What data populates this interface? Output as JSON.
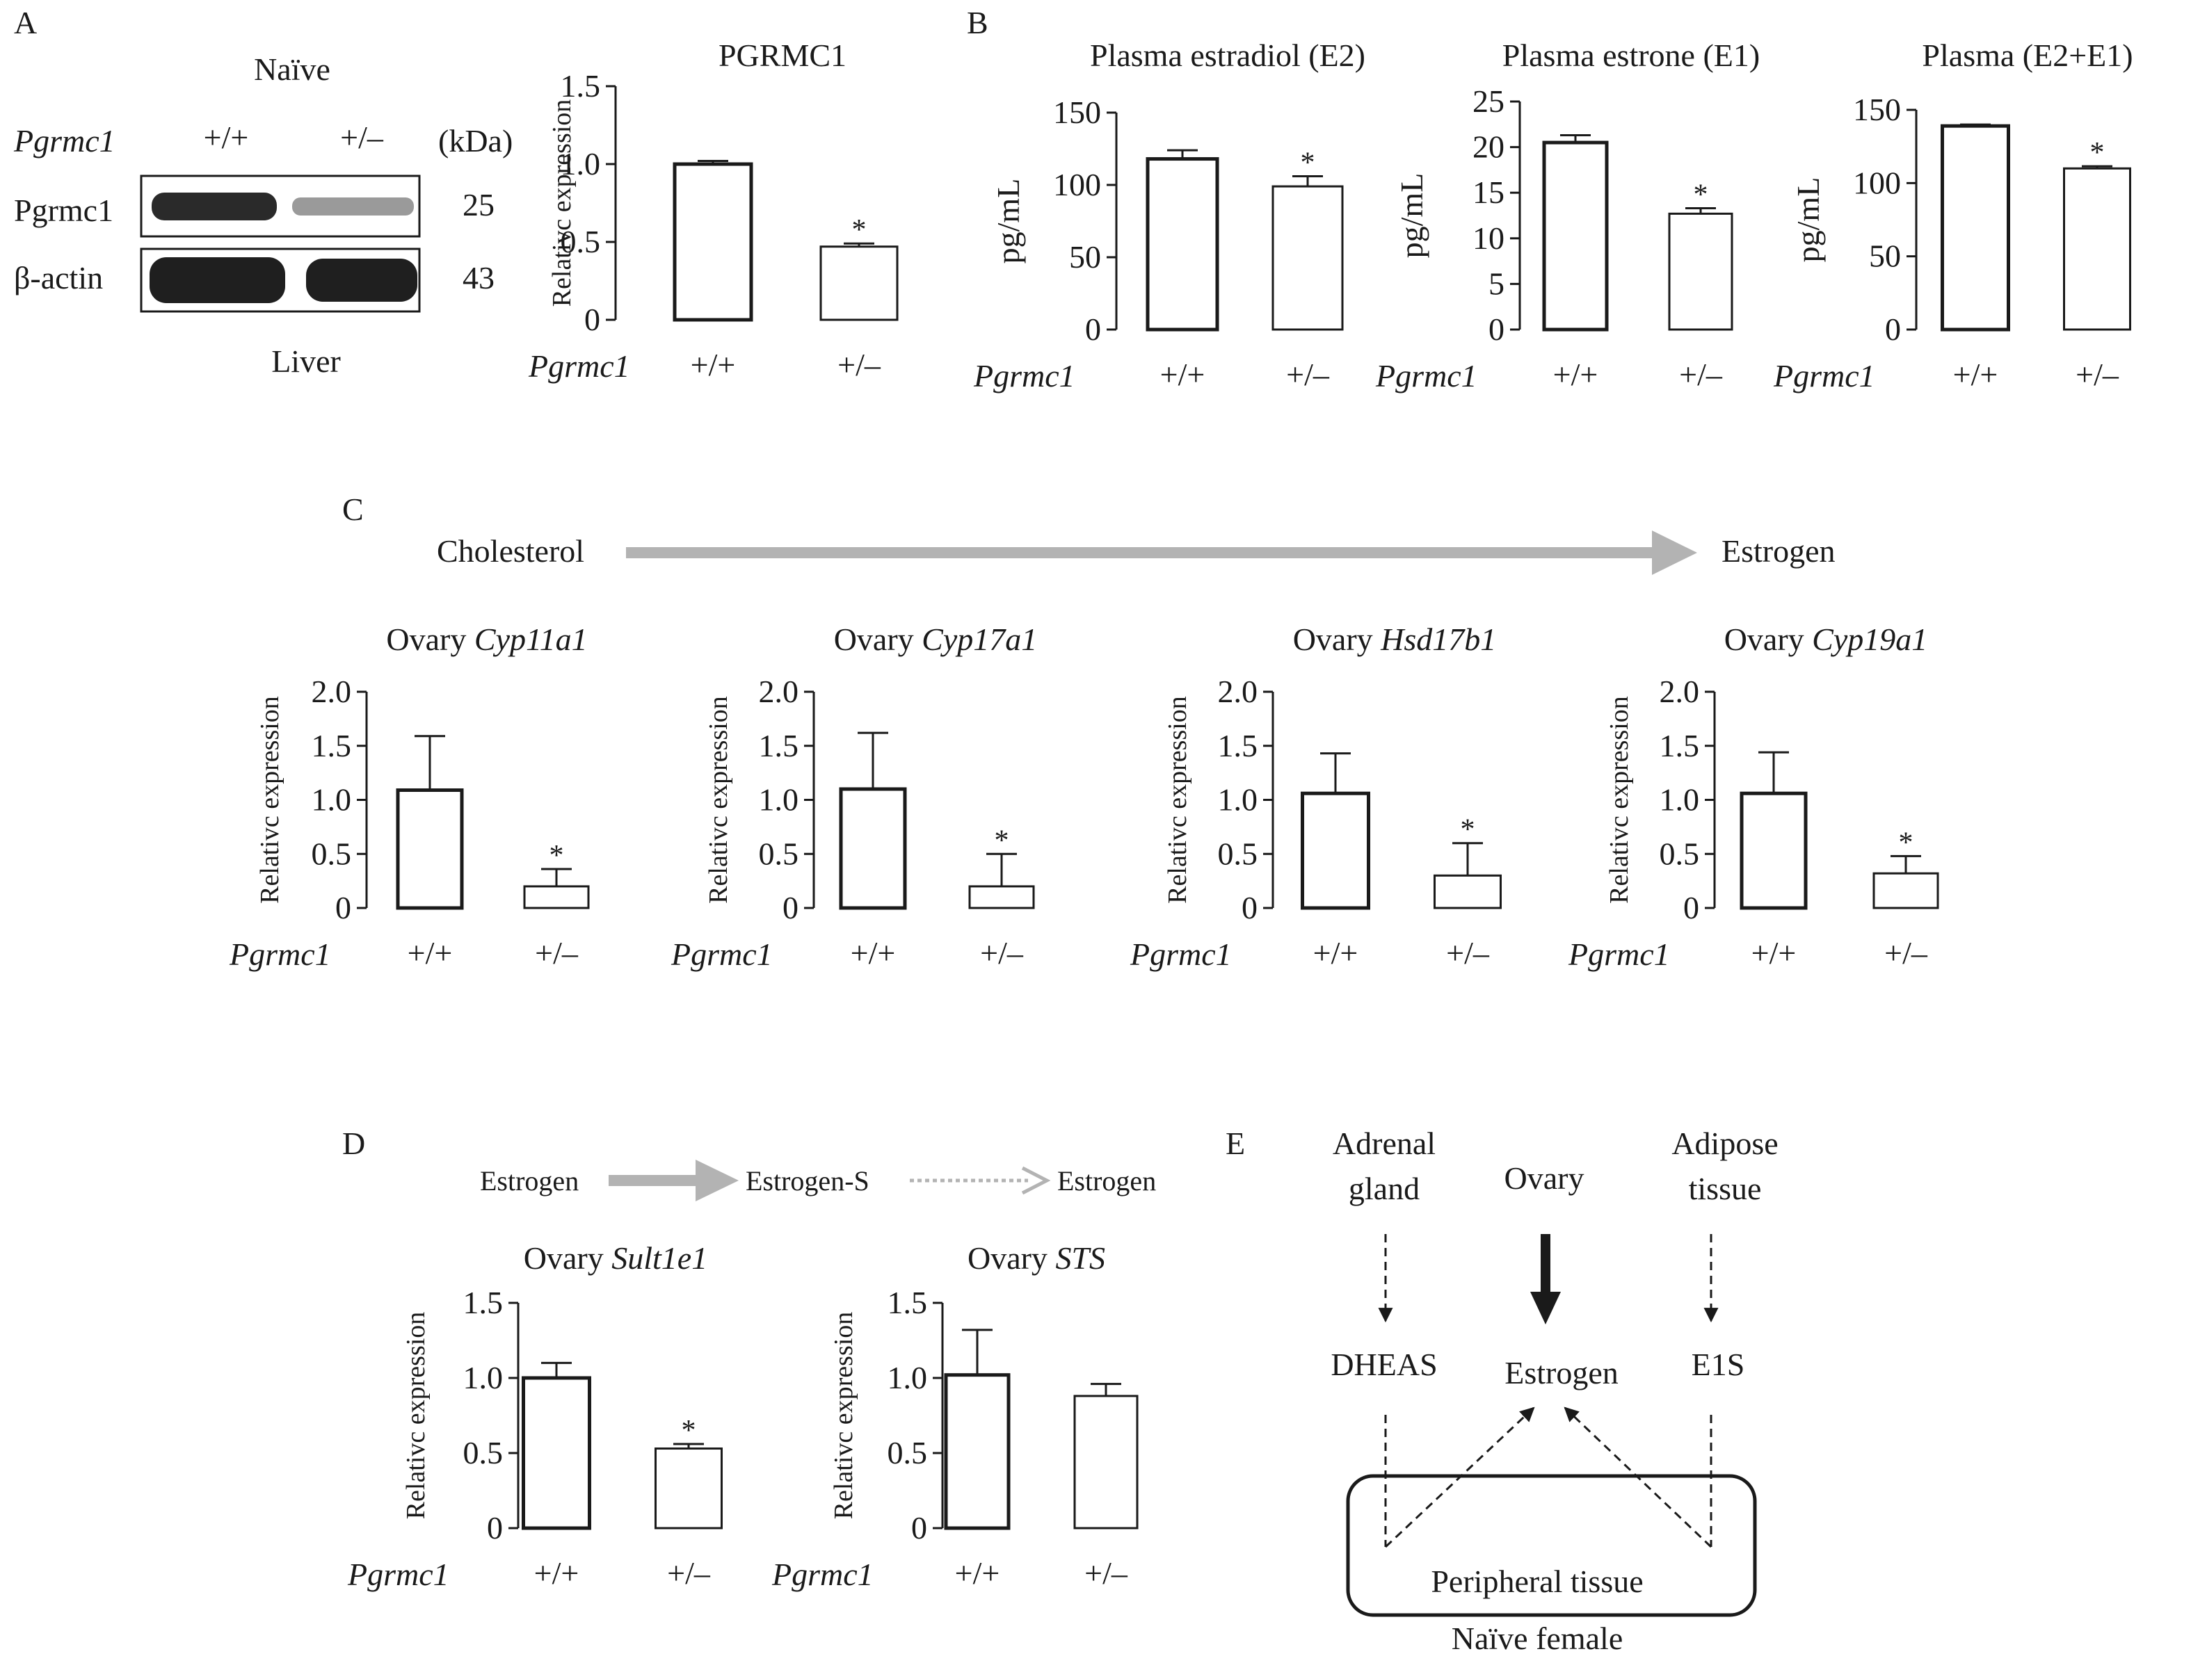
{
  "panels": {
    "A": {
      "letter": "A"
    },
    "B": {
      "letter": "B"
    },
    "C": {
      "letter": "C"
    },
    "D": {
      "letter": "D"
    },
    "E": {
      "letter": "E"
    }
  },
  "western_blot": {
    "title": "Naïve",
    "gene_label": "Pgrmc1",
    "genotypes": [
      "+/+",
      "+/–"
    ],
    "kda_label": "(kDa)",
    "rows": [
      {
        "label": "Pgrmc1",
        "kda": "25"
      },
      {
        "label": "β-actin",
        "kda": "43"
      }
    ],
    "tissue": "Liver"
  },
  "pathway_c": {
    "from": "Cholesterol",
    "to": "Estrogen"
  },
  "pathway_d": {
    "a": "Estrogen",
    "b": "Estrogen-S",
    "c": "Estrogen"
  },
  "diagram_e": {
    "adrenal": [
      "Adrenal",
      "gland"
    ],
    "ovary": "Ovary",
    "adipose": [
      "Adipose",
      "tissue"
    ],
    "dheas": "DHEAS",
    "estrogen": "Estrogen",
    "e1s": "E1S",
    "peripheral": "Peripheral tissue",
    "caption": "Naïve female"
  },
  "colors": {
    "ink": "#1a1a1a",
    "arrow_gray": "#b3b3b3",
    "bar_fill": "#ffffff"
  },
  "chart_data": [
    {
      "id": "A-pgrmc1",
      "type": "bar",
      "title": "PGRMC1",
      "title_italic": "",
      "ylabel": "Relativc expression",
      "xlabel_gene": "Pgrmc1",
      "categories": [
        "+/+",
        "+/–"
      ],
      "values": [
        1.0,
        0.47
      ],
      "errors": [
        0.02,
        0.02
      ],
      "significance": [
        "",
        "*"
      ],
      "ylim": [
        0,
        1.5
      ],
      "yticks": [
        0,
        0.5,
        1.0,
        1.5
      ],
      "ytick_labels": [
        "0",
        "0.5",
        "1.0",
        "1.5"
      ]
    },
    {
      "id": "B-e2",
      "type": "bar",
      "title": "Plasma estradiol (E2)",
      "title_italic": "",
      "ylabel": "pg/mL",
      "xlabel_gene": "Pgrmc1",
      "categories": [
        "+/+",
        "+/–"
      ],
      "values": [
        118,
        99
      ],
      "errors": [
        6,
        7
      ],
      "significance": [
        "",
        "*"
      ],
      "ylim": [
        0,
        150
      ],
      "yticks": [
        0,
        50,
        100,
        150
      ],
      "ytick_labels": [
        "0",
        "50",
        "100",
        "150"
      ]
    },
    {
      "id": "B-e1",
      "type": "bar",
      "title": "Plasma estrone (E1)",
      "title_italic": "",
      "ylabel": "pg/mL",
      "xlabel_gene": "Pgrmc1",
      "categories": [
        "+/+",
        "+/–"
      ],
      "values": [
        20.5,
        12.7
      ],
      "errors": [
        0.8,
        0.6
      ],
      "significance": [
        "",
        "*"
      ],
      "ylim": [
        0,
        25
      ],
      "yticks": [
        0,
        5,
        10,
        15,
        20,
        25
      ],
      "ytick_labels": [
        "0",
        "5",
        "10",
        "15",
        "20",
        "25"
      ]
    },
    {
      "id": "B-e2e1",
      "type": "bar",
      "title": "Plasma (E2+E1)",
      "title_italic": "",
      "ylabel": "pg/mL",
      "xlabel_gene": "Pgrmc1",
      "categories": [
        "+/+",
        "+/–"
      ],
      "values": [
        139,
        110
      ],
      "errors": [
        1,
        1.5
      ],
      "significance": [
        "",
        "*"
      ],
      "ylim": [
        0,
        150
      ],
      "yticks": [
        0,
        50,
        100,
        150
      ],
      "ytick_labels": [
        "0",
        "50",
        "100",
        "150"
      ]
    },
    {
      "id": "C-cyp11a1",
      "type": "bar",
      "title": "Ovary ",
      "title_italic": "Cyp11a1",
      "ylabel": "Relativc expression",
      "xlabel_gene": "Pgrmc1",
      "categories": [
        "+/+",
        "+/–"
      ],
      "values": [
        1.09,
        0.2
      ],
      "errors": [
        0.5,
        0.16
      ],
      "significance": [
        "",
        "*"
      ],
      "ylim": [
        0,
        2.0
      ],
      "yticks": [
        0,
        0.5,
        1.0,
        1.5,
        2.0
      ],
      "ytick_labels": [
        "0",
        "0.5",
        "1.0",
        "1.5",
        "2.0"
      ]
    },
    {
      "id": "C-cyp17a1",
      "type": "bar",
      "title": "Ovary ",
      "title_italic": "Cyp17a1",
      "ylabel": "Relativc expression",
      "xlabel_gene": "Pgrmc1",
      "categories": [
        "+/+",
        "+/–"
      ],
      "values": [
        1.1,
        0.2
      ],
      "errors": [
        0.52,
        0.3
      ],
      "significance": [
        "",
        "*"
      ],
      "ylim": [
        0,
        2.0
      ],
      "yticks": [
        0,
        0.5,
        1.0,
        1.5,
        2.0
      ],
      "ytick_labels": [
        "0",
        "0.5",
        "1.0",
        "1.5",
        "2.0"
      ]
    },
    {
      "id": "C-hsd17b1",
      "type": "bar",
      "title": "Ovary ",
      "title_italic": "Hsd17b1",
      "ylabel": "Relativc expression",
      "xlabel_gene": "Pgrmc1",
      "categories": [
        "+/+",
        "+/–"
      ],
      "values": [
        1.06,
        0.3
      ],
      "errors": [
        0.37,
        0.3
      ],
      "significance": [
        "",
        "*"
      ],
      "ylim": [
        0,
        2.0
      ],
      "yticks": [
        0,
        0.5,
        1.0,
        1.5,
        2.0
      ],
      "ytick_labels": [
        "0",
        "0.5",
        "1.0",
        "1.5",
        "2.0"
      ]
    },
    {
      "id": "C-cyp19a1",
      "type": "bar",
      "title": "Ovary ",
      "title_italic": "Cyp19a1",
      "ylabel": "Relativc expression",
      "xlabel_gene": "Pgrmc1",
      "categories": [
        "+/+",
        "+/–"
      ],
      "values": [
        1.06,
        0.32
      ],
      "errors": [
        0.38,
        0.16
      ],
      "significance": [
        "",
        "*"
      ],
      "ylim": [
        0,
        2.0
      ],
      "yticks": [
        0,
        0.5,
        1.0,
        1.5,
        2.0
      ],
      "ytick_labels": [
        "0",
        "0.5",
        "1.0",
        "1.5",
        "2.0"
      ]
    },
    {
      "id": "D-sult1e1",
      "type": "bar",
      "title": "Ovary ",
      "title_italic": "Sult1e1",
      "ylabel": "Relativc expression",
      "xlabel_gene": "Pgrmc1",
      "categories": [
        "+/+",
        "+/–"
      ],
      "values": [
        1.0,
        0.53
      ],
      "errors": [
        0.1,
        0.03
      ],
      "significance": [
        "",
        "*"
      ],
      "ylim": [
        0,
        1.5
      ],
      "yticks": [
        0,
        0.5,
        1.0,
        1.5
      ],
      "ytick_labels": [
        "0",
        "0.5",
        "1.0",
        "1.5"
      ]
    },
    {
      "id": "D-sts",
      "type": "bar",
      "title": "Ovary ",
      "title_italic": "STS",
      "ylabel": "Relativc expression",
      "xlabel_gene": "Pgrmc1",
      "categories": [
        "+/+",
        "+/–"
      ],
      "values": [
        1.02,
        0.88
      ],
      "errors": [
        0.3,
        0.08
      ],
      "significance": [
        "",
        ""
      ],
      "ylim": [
        0,
        1.5
      ],
      "yticks": [
        0,
        0.5,
        1.0,
        1.5
      ],
      "ytick_labels": [
        "0",
        "0.5",
        "1.0",
        "1.5"
      ]
    }
  ]
}
